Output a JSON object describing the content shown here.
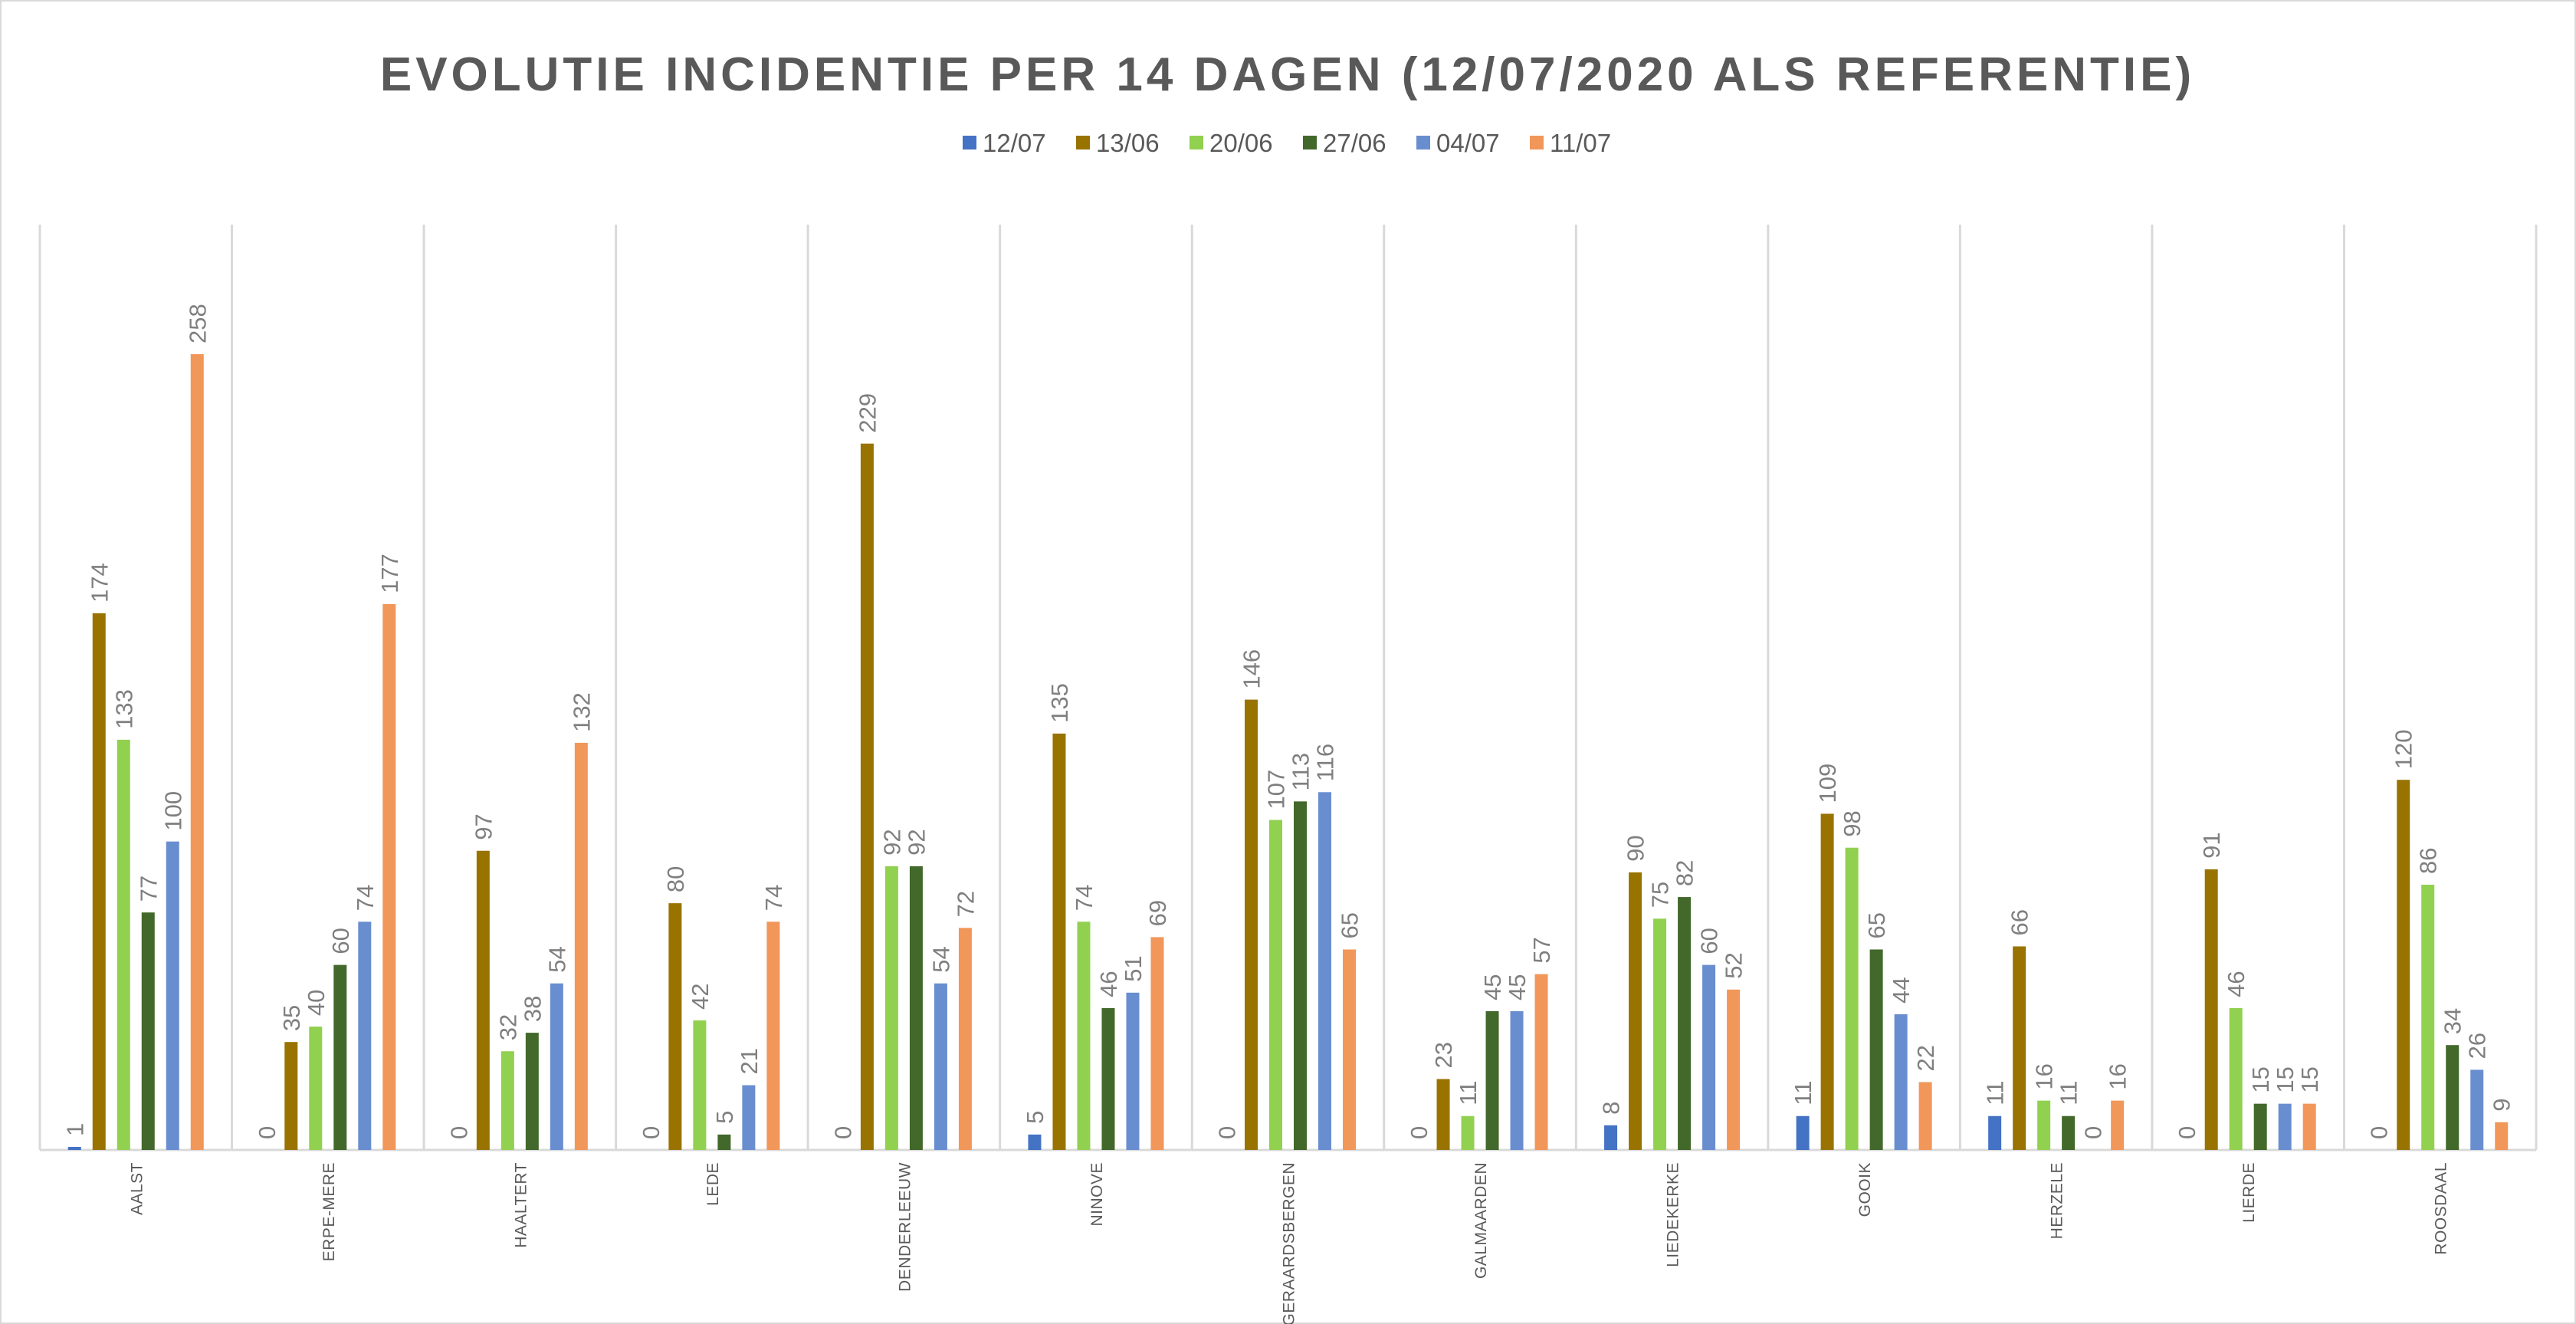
{
  "chart_data": {
    "type": "bar",
    "title": "EVOLUTIE INCIDENTIE PER 14 DAGEN (12/07/2020 ALS REFERENTIE)",
    "xlabel": "",
    "ylabel": "",
    "ylim": [
      0,
      300
    ],
    "grid": "vertical category separators",
    "legend_position": "top",
    "categories": [
      "AALST",
      "ERPE-MERE",
      "HAALTERT",
      "LEDE",
      "DENDERLEEUW",
      "NINOVE",
      "GERAARDSBERGEN",
      "GALMAARDEN",
      "LIEDEKERKE",
      "GOOIK",
      "HERZELE",
      "LIERDE",
      "ROOSDAAL"
    ],
    "series": [
      {
        "name": "12/07",
        "color": "#4472C4",
        "values": [
          1,
          0,
          0,
          0,
          0,
          5,
          0,
          0,
          8,
          11,
          11,
          0,
          0
        ]
      },
      {
        "name": "13/06",
        "color": "#997300",
        "values": [
          174,
          35,
          97,
          80,
          229,
          135,
          146,
          23,
          90,
          109,
          66,
          91,
          120
        ]
      },
      {
        "name": "20/06",
        "color": "#92D050",
        "values": [
          133,
          40,
          32,
          42,
          92,
          74,
          107,
          11,
          75,
          98,
          16,
          46,
          86
        ]
      },
      {
        "name": "27/06",
        "color": "#43682B",
        "values": [
          77,
          60,
          38,
          5,
          92,
          46,
          113,
          45,
          82,
          65,
          11,
          15,
          34
        ]
      },
      {
        "name": "04/07",
        "color": "#698ED0",
        "values": [
          100,
          74,
          54,
          21,
          54,
          51,
          116,
          45,
          60,
          44,
          0,
          15,
          26
        ]
      },
      {
        "name": "11/07",
        "color": "#F1975A",
        "values": [
          258,
          177,
          132,
          74,
          72,
          69,
          65,
          57,
          52,
          22,
          16,
          15,
          9
        ]
      }
    ]
  }
}
